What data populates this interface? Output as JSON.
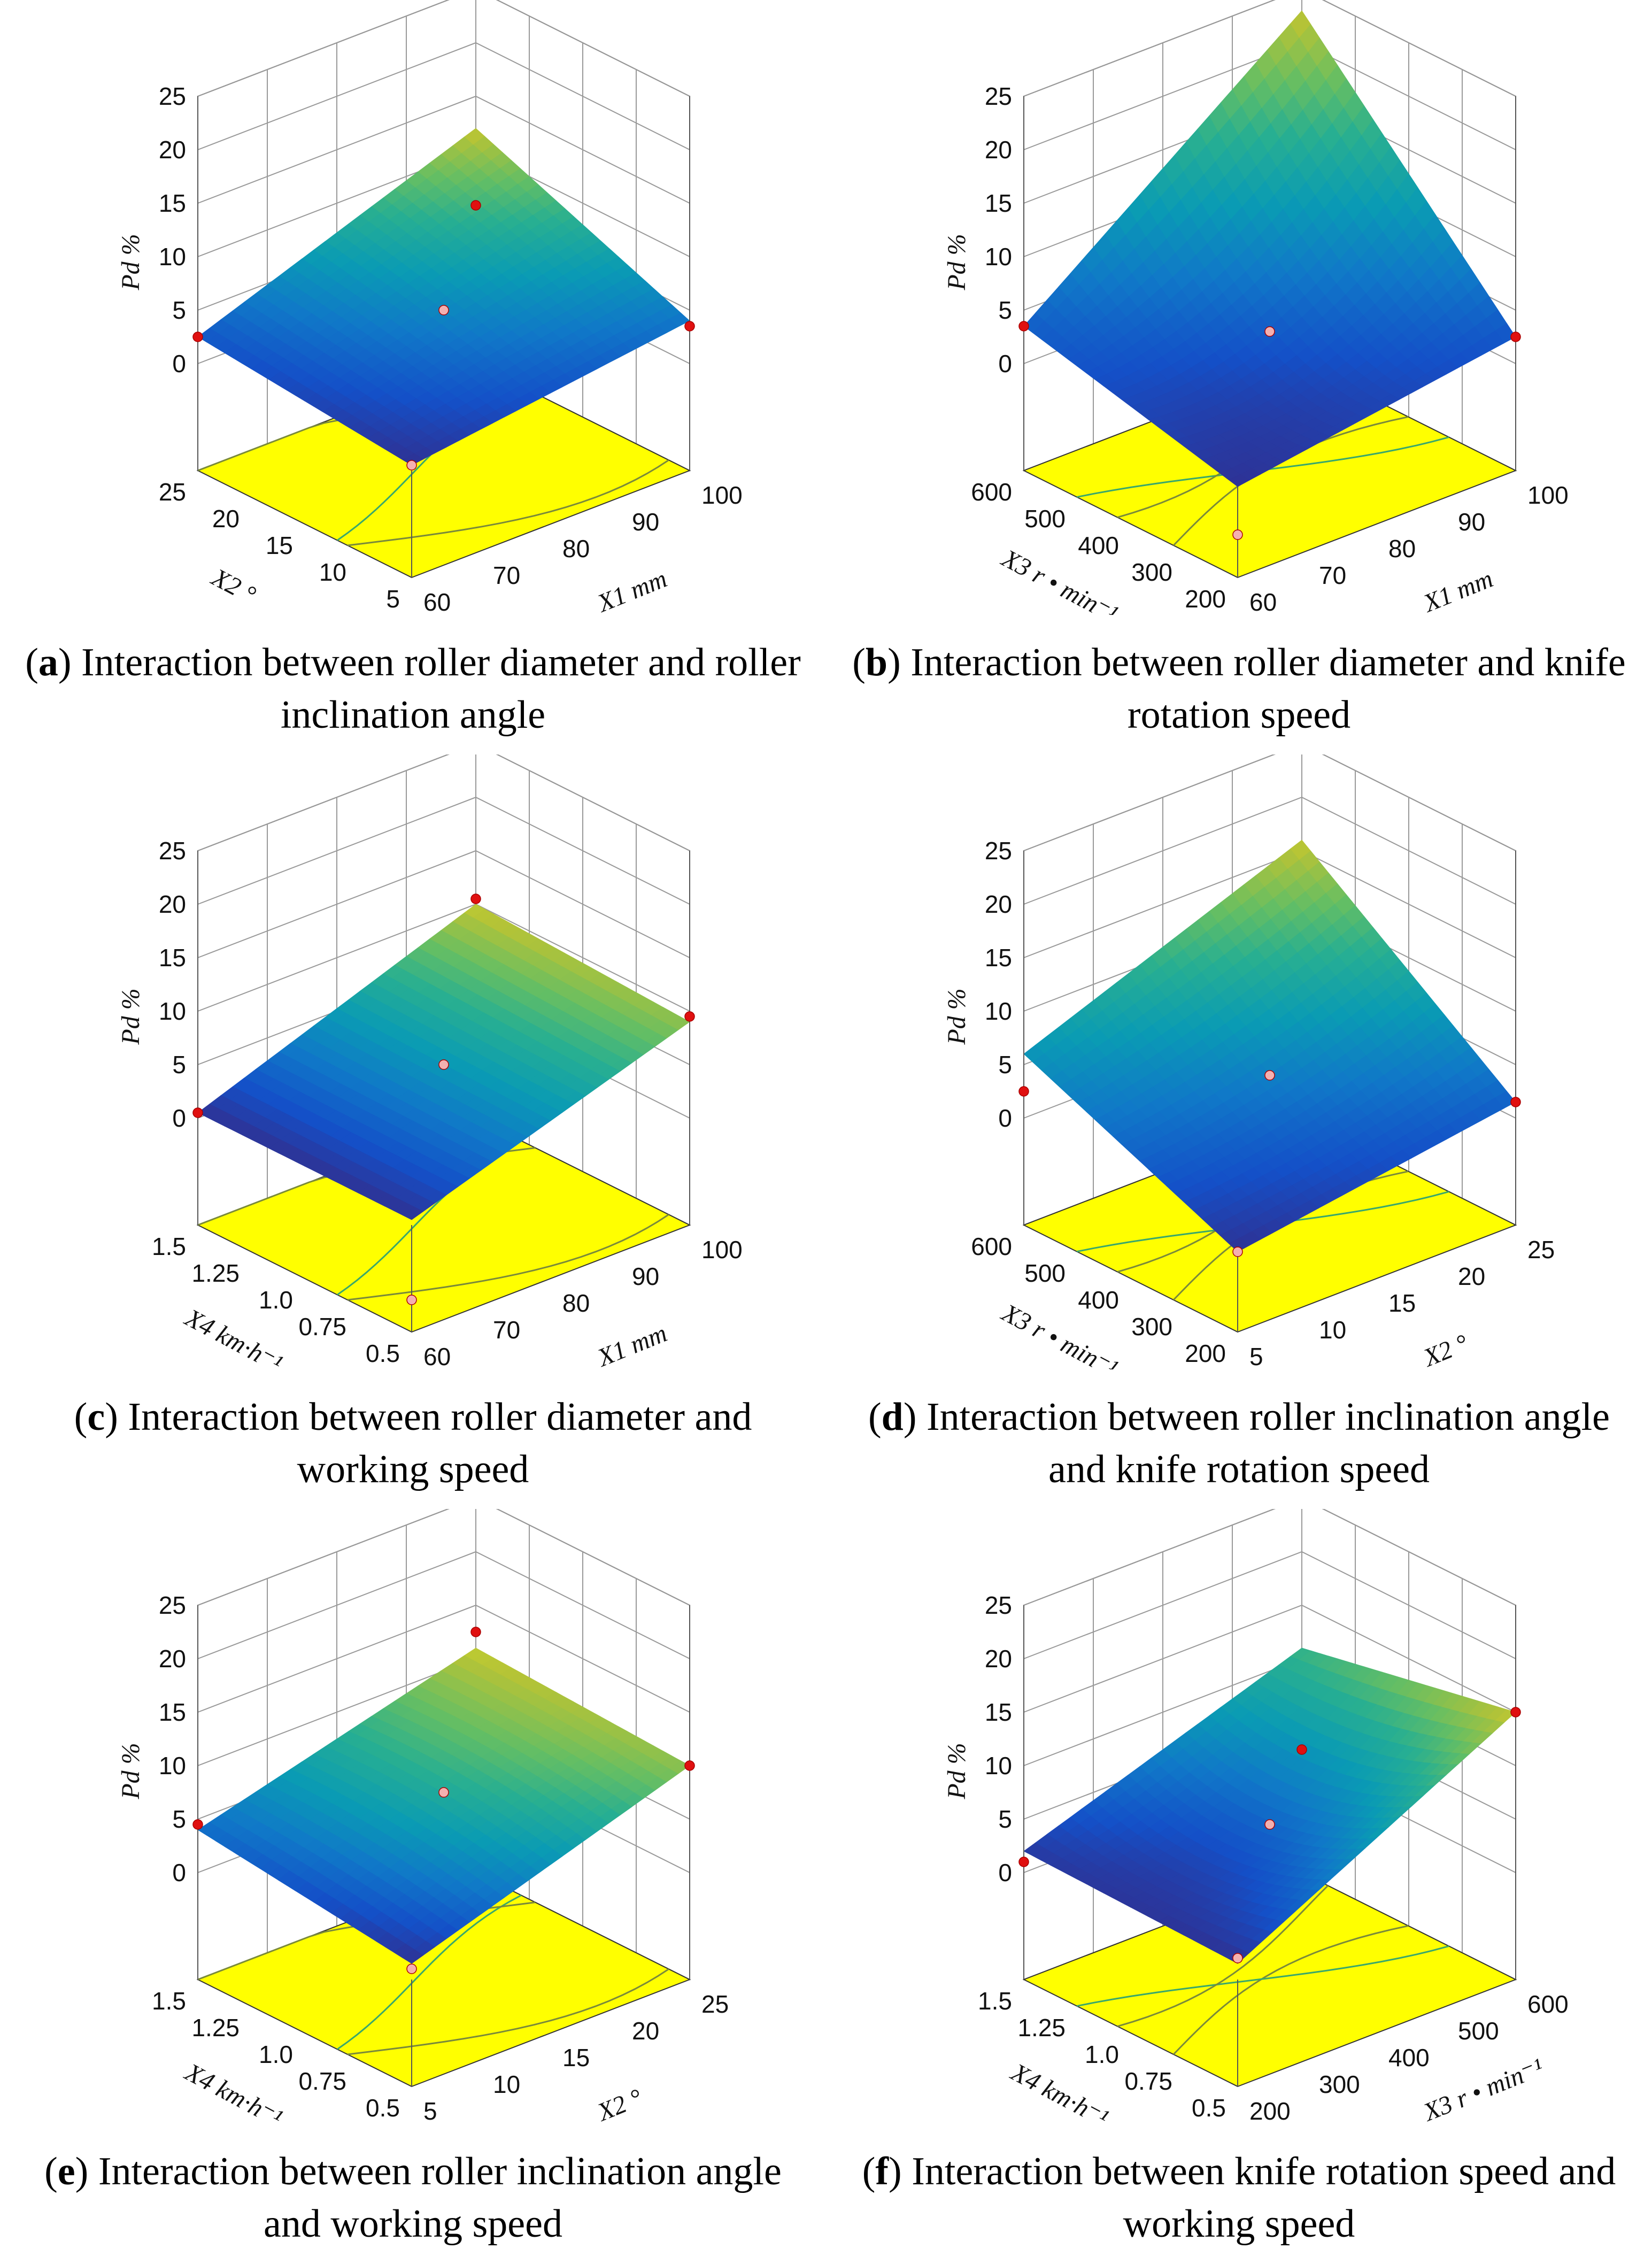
{
  "chart_data": [
    {
      "type": "surface",
      "panel_letter": "a",
      "caption": "Interaction between roller diameter and roller inclination angle",
      "z_axis": {
        "label": "Pd",
        "unit": "%",
        "ticks": [
          "0",
          "5",
          "10",
          "15",
          "20",
          "25"
        ],
        "range": [
          0,
          25
        ]
      },
      "x_axis": {
        "label": "X1",
        "unit": "mm",
        "ticks": [
          "60",
          "70",
          "80",
          "90",
          "100"
        ],
        "range": [
          60,
          100
        ]
      },
      "y_axis": {
        "label": "X2",
        "unit": "°",
        "ticks": [
          "5",
          "10",
          "15",
          "20",
          "25"
        ],
        "range": [
          5,
          25
        ]
      },
      "surface_corners": {
        "z_front": 0.5,
        "z_right": 4.0,
        "z_left": 2.5,
        "z_back": 12.0,
        "z_center": 5.0
      },
      "colormap": "parula",
      "floor_color": "#ffff00",
      "design_points_z": [
        2.5,
        0.5,
        3.5,
        5.0,
        4.8
      ]
    },
    {
      "type": "surface",
      "panel_letter": "b",
      "caption": "Interaction between roller diameter and knife rotation speed",
      "z_axis": {
        "label": "Pd",
        "unit": "%",
        "ticks": [
          "0",
          "5",
          "10",
          "15",
          "20",
          "25"
        ],
        "range": [
          0,
          25
        ]
      },
      "x_axis": {
        "label": "X1",
        "unit": "mm",
        "ticks": [
          "60",
          "70",
          "80",
          "90",
          "100"
        ],
        "range": [
          60,
          100
        ]
      },
      "y_axis": {
        "label": "X3",
        "unit": "r • min⁻¹",
        "ticks": [
          "200",
          "300",
          "400",
          "500",
          "600"
        ],
        "range": [
          200,
          600
        ]
      },
      "surface_corners": {
        "z_front": -1.5,
        "z_right": 2.5,
        "z_left": 3.5,
        "z_back": 23.0,
        "z_center": 3.0
      },
      "colormap": "parula",
      "floor_color": "#ffff00",
      "design_points_z": [
        3.5,
        -6.0,
        2.5,
        3.0,
        25.0
      ]
    },
    {
      "type": "surface",
      "panel_letter": "c",
      "caption": "Interaction between roller diameter and working speed",
      "z_axis": {
        "label": "Pd",
        "unit": "%",
        "ticks": [
          "0",
          "5",
          "10",
          "15",
          "20",
          "25"
        ],
        "range": [
          0,
          25
        ]
      },
      "x_axis": {
        "label": "X1",
        "unit": "mm",
        "ticks": [
          "60",
          "70",
          "80",
          "90",
          "100"
        ],
        "range": [
          60,
          100
        ]
      },
      "y_axis": {
        "label": "X4",
        "unit": "km·h⁻¹",
        "ticks": [
          "0.5",
          "0.75",
          "1.0",
          "1.25",
          "1.5"
        ],
        "range": [
          0.5,
          1.5
        ]
      },
      "surface_corners": {
        "z_front": 0.5,
        "z_right": 9.0,
        "z_left": 0.5,
        "z_back": 10.0,
        "z_center": 5.0
      },
      "colormap": "parula",
      "floor_color": "#ffff00",
      "design_points_z": [
        0.5,
        -7.0,
        9.5,
        5.0,
        10.5
      ]
    },
    {
      "type": "surface",
      "panel_letter": "d",
      "caption": "Interaction between roller inclination angle and knife rotation speed",
      "z_axis": {
        "label": "Pd",
        "unit": "%",
        "ticks": [
          "0",
          "5",
          "10",
          "15",
          "20",
          "25"
        ],
        "range": [
          0,
          25
        ]
      },
      "x_axis": {
        "label": "X2",
        "unit": "°",
        "ticks": [
          "5",
          "10",
          "15",
          "20",
          "25"
        ],
        "range": [
          5,
          25
        ]
      },
      "y_axis": {
        "label": "X3",
        "unit": "r • min⁻¹",
        "ticks": [
          "200",
          "300",
          "400",
          "500",
          "600"
        ],
        "range": [
          200,
          600
        ]
      },
      "surface_corners": {
        "z_front": -2.5,
        "z_right": 1.5,
        "z_left": 6.0,
        "z_back": 16.0,
        "z_center": 4.0
      },
      "colormap": "parula",
      "floor_color": "#ffff00",
      "design_points_z": [
        2.5,
        -2.5,
        1.5,
        4.0
      ]
    },
    {
      "type": "surface",
      "panel_letter": "e",
      "caption": "Interaction between roller inclination angle and working speed",
      "z_axis": {
        "label": "Pd",
        "unit": "%",
        "ticks": [
          "0",
          "5",
          "10",
          "15",
          "20",
          "25"
        ],
        "range": [
          0,
          25
        ]
      },
      "x_axis": {
        "label": "X2",
        "unit": "°",
        "ticks": [
          "5",
          "10",
          "15",
          "20",
          "25"
        ],
        "range": [
          5,
          25
        ]
      },
      "y_axis": {
        "label": "X4",
        "unit": "km·h⁻¹",
        "ticks": [
          "0.5",
          "0.75",
          "1.0",
          "1.25",
          "1.5"
        ],
        "range": [
          0.5,
          1.5
        ]
      },
      "surface_corners": {
        "z_front": 1.5,
        "z_right": 10.0,
        "z_left": 4.0,
        "z_back": 11.0,
        "z_center": 7.5
      },
      "colormap": "parula",
      "floor_color": "#ffff00",
      "design_points_z": [
        4.5,
        1.0,
        10.0,
        7.5,
        12.5
      ]
    },
    {
      "type": "surface",
      "panel_letter": "f",
      "caption": "Interaction between knife rotation speed and working speed",
      "z_axis": {
        "label": "Pd",
        "unit": "%",
        "ticks": [
          "0",
          "5",
          "10",
          "15",
          "20",
          "25"
        ],
        "range": [
          0,
          25
        ]
      },
      "x_axis": {
        "label": "X3",
        "unit": "r • min⁻¹",
        "ticks": [
          "200",
          "300",
          "400",
          "500",
          "600"
        ],
        "range": [
          200,
          600
        ]
      },
      "y_axis": {
        "label": "X4",
        "unit": "km·h⁻¹",
        "ticks": [
          "0.5",
          "0.75",
          "1.0",
          "1.25",
          "1.5"
        ],
        "range": [
          0.5,
          1.5
        ]
      },
      "surface_corners": {
        "z_front": 1.5,
        "z_right": 15.0,
        "z_left": 2.0,
        "z_back": 11.0,
        "z_center": 4.5
      },
      "colormap": "parula",
      "floor_color": "#ffff00",
      "design_points_z": [
        1.0,
        2.0,
        15.0,
        4.5,
        1.5
      ]
    }
  ]
}
